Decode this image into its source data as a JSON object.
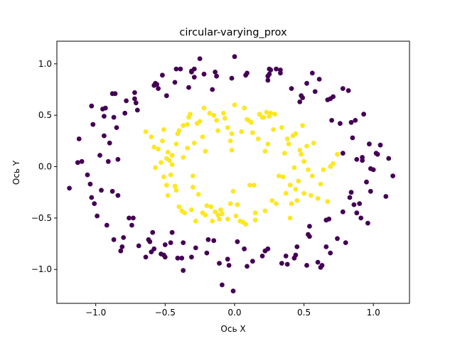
{
  "chart_data": {
    "type": "scatter",
    "title": "circular-varying_prox",
    "xlabel": "Ось X",
    "ylabel": "Ось Y",
    "xlim": [
      -1.28,
      1.26
    ],
    "ylim": [
      -1.33,
      1.22
    ],
    "xticks": [
      -1.0,
      -0.5,
      0.0,
      0.5,
      1.0
    ],
    "xtick_labels": [
      "−1.0",
      "−0.5",
      "0.0",
      "0.5",
      "1.0"
    ],
    "yticks": [
      -1.0,
      -0.5,
      0.0,
      0.5,
      1.0
    ],
    "ytick_labels": [
      "−1.0",
      "−0.5",
      "0.0",
      "0.5",
      "1.0"
    ],
    "grid": false,
    "colors": {
      "class_0": "#440154",
      "class_1": "#fde725"
    },
    "series": [
      {
        "color_key": "class_0",
        "points": [
          [
            -1.19,
            -0.21
          ],
          [
            -1.13,
            0.04
          ],
          [
            -1.12,
            0.27
          ],
          [
            -1.1,
            0.05
          ],
          [
            -1.06,
            -0.08
          ],
          [
            -1.04,
            -0.17
          ],
          [
            -1.03,
            0.59
          ],
          [
            -1.03,
            -0.3
          ],
          [
            -1.02,
            0.41
          ],
          [
            -1.01,
            -0.36
          ],
          [
            -0.99,
            -0.48
          ],
          [
            -0.97,
            0.11
          ],
          [
            -0.96,
            -0.23
          ],
          [
            -0.95,
            0.56
          ],
          [
            -0.94,
            0.3
          ],
          [
            -0.94,
            0.49
          ],
          [
            -0.93,
            0.57
          ],
          [
            -0.92,
            -0.57
          ],
          [
            -0.91,
            0.05
          ],
          [
            -0.9,
            0.23
          ],
          [
            -0.88,
            0.71
          ],
          [
            -0.88,
            -0.24
          ],
          [
            -0.87,
            -0.71
          ],
          [
            -0.87,
            0.48
          ],
          [
            -0.86,
            0.71
          ],
          [
            -0.85,
            0.38
          ],
          [
            -0.84,
            0.07
          ],
          [
            -0.84,
            -0.28
          ],
          [
            -0.82,
            -0.82
          ],
          [
            -0.81,
            -0.78
          ],
          [
            -0.8,
            -0.69
          ],
          [
            -0.79,
            0.52
          ],
          [
            -0.78,
            0.64
          ],
          [
            -0.76,
            -0.5
          ],
          [
            -0.74,
            -0.57
          ],
          [
            -0.73,
            -0.5
          ],
          [
            -0.72,
            0.66
          ],
          [
            -0.72,
            0.72
          ],
          [
            -0.71,
            0.62
          ],
          [
            -0.7,
            0.55
          ],
          [
            -0.69,
            -0.77
          ],
          [
            -0.64,
            -0.88
          ],
          [
            -0.62,
            -0.71
          ],
          [
            -0.61,
            -0.73
          ],
          [
            -0.6,
            -0.83
          ],
          [
            -0.59,
            -0.64
          ],
          [
            -0.58,
            0.79
          ],
          [
            -0.58,
            -0.8
          ],
          [
            -0.57,
            0.81
          ],
          [
            -0.56,
            0.8
          ],
          [
            -0.55,
            0.76
          ],
          [
            -0.53,
            -0.85
          ],
          [
            -0.52,
            0.89
          ],
          [
            -0.51,
            -0.86
          ],
          [
            -0.5,
            -0.76
          ],
          [
            -0.5,
            -0.88
          ],
          [
            -0.49,
            0.69
          ],
          [
            -0.46,
            -0.74
          ],
          [
            -0.45,
            -0.64
          ],
          [
            -0.43,
            0.82
          ],
          [
            -0.42,
            0.95
          ],
          [
            -0.41,
            -0.89
          ],
          [
            -0.39,
            0.95
          ],
          [
            -0.38,
            -0.89
          ],
          [
            -0.37,
            -0.74
          ],
          [
            -0.37,
            -1.01
          ],
          [
            -0.33,
            0.77
          ],
          [
            -0.31,
            0.92
          ],
          [
            -0.31,
            0.93
          ],
          [
            -0.31,
            -0.88
          ],
          [
            -0.29,
            0.95
          ],
          [
            -0.29,
            0.87
          ],
          [
            -0.28,
            -0.79
          ],
          [
            -0.25,
            1.05
          ],
          [
            -0.22,
            0.9
          ],
          [
            -0.2,
            -0.84
          ],
          [
            -0.19,
            -0.71
          ],
          [
            -0.16,
            0.75
          ],
          [
            -0.15,
            -0.72
          ],
          [
            -0.14,
            0.92
          ],
          [
            -0.13,
            0.88
          ],
          [
            -0.11,
            -0.94
          ],
          [
            -0.09,
            -1.15
          ],
          [
            -0.05,
            -0.9
          ],
          [
            -0.04,
            -0.96
          ],
          [
            -0.02,
            0.86
          ],
          [
            -0.01,
            -1.21
          ],
          [
            0.0,
            1.07
          ],
          [
            0.02,
            -0.73
          ],
          [
            0.07,
            -0.8
          ],
          [
            0.08,
            0.89
          ],
          [
            0.09,
            0.91
          ],
          [
            0.09,
            -0.97
          ],
          [
            0.13,
            -0.92
          ],
          [
            0.2,
            -0.87
          ],
          [
            0.22,
            -0.82
          ],
          [
            0.24,
            -0.8
          ],
          [
            0.24,
            0.84
          ],
          [
            0.24,
            0.88
          ],
          [
            0.25,
            0.95
          ],
          [
            0.25,
            0.9
          ],
          [
            0.26,
            0.94
          ],
          [
            0.3,
            0.95
          ],
          [
            0.33,
            0.94
          ],
          [
            0.33,
            0.91
          ],
          [
            0.34,
            -0.94
          ],
          [
            0.37,
            -0.87
          ],
          [
            0.38,
            -0.95
          ],
          [
            0.41,
            0.76
          ],
          [
            0.43,
            -0.89
          ],
          [
            0.44,
            -0.86
          ],
          [
            0.45,
            -0.78
          ],
          [
            0.47,
            0.63
          ],
          [
            0.48,
            0.69
          ],
          [
            0.49,
            0.67
          ],
          [
            0.52,
            0.81
          ],
          [
            0.52,
            -0.96
          ],
          [
            0.53,
            -0.66
          ],
          [
            0.54,
            -0.68
          ],
          [
            0.54,
            -0.58
          ],
          [
            0.56,
            0.91
          ],
          [
            0.58,
            0.73
          ],
          [
            0.6,
            -0.93
          ],
          [
            0.61,
            0.85
          ],
          [
            0.62,
            -0.98
          ],
          [
            0.63,
            -0.96
          ],
          [
            0.66,
            -0.78
          ],
          [
            0.66,
            -0.52
          ],
          [
            0.67,
            0.65
          ],
          [
            0.68,
            -0.51
          ],
          [
            0.69,
            -0.84
          ],
          [
            0.69,
            0.66
          ],
          [
            0.7,
            0.45
          ],
          [
            0.71,
            0.68
          ],
          [
            0.74,
            -0.7
          ],
          [
            0.76,
            0.42
          ],
          [
            0.78,
            -0.44
          ],
          [
            0.78,
            0.76
          ],
          [
            0.78,
            0.13
          ],
          [
            0.8,
            -0.74
          ],
          [
            0.82,
            0.74
          ],
          [
            0.83,
            -0.3
          ],
          [
            0.84,
            0.43
          ],
          [
            0.84,
            -0.25
          ],
          [
            0.85,
            0.28
          ],
          [
            0.86,
            -0.37
          ],
          [
            0.87,
            0.45
          ],
          [
            0.88,
            0.07
          ],
          [
            0.88,
            -0.45
          ],
          [
            0.9,
            -0.36
          ],
          [
            0.91,
            -0.5
          ],
          [
            0.92,
            0.09
          ],
          [
            0.92,
            0.06
          ],
          [
            0.93,
            0.51
          ],
          [
            0.95,
            -0.15
          ],
          [
            0.96,
            -0.55
          ],
          [
            0.97,
            0.22
          ],
          [
            0.98,
            -0.24
          ],
          [
            0.98,
            -0.02
          ],
          [
            1.0,
            -0.03
          ],
          [
            1.02,
            0.13
          ],
          [
            1.03,
            0.12
          ],
          [
            1.05,
            0.21
          ],
          [
            1.09,
            -0.29
          ],
          [
            1.11,
            0.08
          ],
          [
            1.14,
            -0.09
          ]
        ]
      },
      {
        "color_key": "class_1",
        "points": [
          [
            -0.64,
            0.34
          ],
          [
            -0.6,
            0.29
          ],
          [
            -0.58,
            0.19
          ],
          [
            -0.57,
            -0.01
          ],
          [
            -0.55,
            0.17
          ],
          [
            -0.53,
            0.04
          ],
          [
            -0.52,
            0.25
          ],
          [
            -0.51,
            0.36
          ],
          [
            -0.51,
            -0.1
          ],
          [
            -0.49,
            0.08
          ],
          [
            -0.49,
            -0.18
          ],
          [
            -0.48,
            0.14
          ],
          [
            -0.48,
            -0.28
          ],
          [
            -0.47,
            0.06
          ],
          [
            -0.46,
            -0.08
          ],
          [
            -0.45,
            0.02
          ],
          [
            -0.45,
            0.11
          ],
          [
            -0.43,
            -0.19
          ],
          [
            -0.42,
            -0.23
          ],
          [
            -0.42,
            0.22
          ],
          [
            -0.41,
            0.32
          ],
          [
            -0.4,
            0.35
          ],
          [
            -0.4,
            -0.39
          ],
          [
            -0.38,
            -0.43
          ],
          [
            -0.37,
            0.09
          ],
          [
            -0.37,
            0.4
          ],
          [
            -0.36,
            -0.45
          ],
          [
            -0.34,
            0.18
          ],
          [
            -0.34,
            0.41
          ],
          [
            -0.33,
            0.48
          ],
          [
            -0.32,
            0.51
          ],
          [
            -0.31,
            -0.42
          ],
          [
            -0.3,
            -0.2
          ],
          [
            -0.3,
            -0.09
          ],
          [
            -0.29,
            0.23
          ],
          [
            -0.28,
            -0.53
          ],
          [
            -0.27,
            0.42
          ],
          [
            -0.26,
            -0.27
          ],
          [
            -0.25,
            0.44
          ],
          [
            -0.23,
            -0.45
          ],
          [
            -0.23,
            0.29
          ],
          [
            -0.22,
            0.57
          ],
          [
            -0.21,
            0.15
          ],
          [
            -0.21,
            -0.47
          ],
          [
            -0.2,
            -0.38
          ],
          [
            -0.18,
            0.52
          ],
          [
            -0.17,
            -0.39
          ],
          [
            -0.16,
            -0.53
          ],
          [
            -0.15,
            0.5
          ],
          [
            -0.14,
            -0.44
          ],
          [
            -0.13,
            0.45
          ],
          [
            -0.12,
            -0.47
          ],
          [
            -0.12,
            0.35
          ],
          [
            -0.11,
            -0.51
          ],
          [
            -0.1,
            -0.42
          ],
          [
            -0.09,
            -0.46
          ],
          [
            -0.08,
            0.52
          ],
          [
            -0.07,
            0.47
          ],
          [
            -0.05,
            -0.51
          ],
          [
            -0.05,
            0.38
          ],
          [
            -0.03,
            0.25
          ],
          [
            -0.03,
            -0.36
          ],
          [
            -0.02,
            0.16
          ],
          [
            -0.02,
            0.32
          ],
          [
            -0.01,
            -0.24
          ],
          [
            0.0,
            0.6
          ],
          [
            0.01,
            -0.48
          ],
          [
            0.02,
            -0.37
          ],
          [
            0.04,
            -0.53
          ],
          [
            0.05,
            0.34
          ],
          [
            0.06,
            -0.54
          ],
          [
            0.07,
            0.57
          ],
          [
            0.08,
            -0.56
          ],
          [
            0.09,
            0.46
          ],
          [
            0.1,
            0.45
          ],
          [
            0.11,
            -0.18
          ],
          [
            0.12,
            0.43
          ],
          [
            0.13,
            0.33
          ],
          [
            0.14,
            -0.18
          ],
          [
            0.15,
            -0.45
          ],
          [
            0.15,
            -0.52
          ],
          [
            0.17,
            0.27
          ],
          [
            0.18,
            0.51
          ],
          [
            0.2,
            0.48
          ],
          [
            0.21,
            0.48
          ],
          [
            0.22,
            0.15
          ],
          [
            0.22,
            -0.43
          ],
          [
            0.23,
            0.53
          ],
          [
            0.24,
            0.22
          ],
          [
            0.25,
            0.49
          ],
          [
            0.26,
            0.52
          ],
          [
            0.27,
            -0.33
          ],
          [
            0.28,
            0.36
          ],
          [
            0.29,
            0.51
          ],
          [
            0.3,
            -0.36
          ],
          [
            0.32,
            -0.09
          ],
          [
            0.34,
            0.38
          ],
          [
            0.35,
            -0.1
          ],
          [
            0.36,
            0.13
          ],
          [
            0.37,
            -0.26
          ],
          [
            0.38,
            0.27
          ],
          [
            0.39,
            0.22
          ],
          [
            0.4,
            -0.18
          ],
          [
            0.4,
            -0.5
          ],
          [
            0.41,
            -0.36
          ],
          [
            0.42,
            0.3
          ],
          [
            0.43,
            -0.01
          ],
          [
            0.44,
            0.32
          ],
          [
            0.44,
            -0.22
          ],
          [
            0.45,
            -0.33
          ],
          [
            0.46,
            -0.14
          ],
          [
            0.47,
            0.16
          ],
          [
            0.48,
            0.12
          ],
          [
            0.49,
            0.4
          ],
          [
            0.5,
            0.05
          ],
          [
            0.5,
            -0.26
          ],
          [
            0.52,
            0.2
          ],
          [
            0.53,
            -0.03
          ],
          [
            0.55,
            -0.28
          ],
          [
            0.56,
            -0.09
          ],
          [
            0.57,
            0.23
          ],
          [
            0.6,
            -0.31
          ],
          [
            0.62,
            -0.17
          ],
          [
            0.64,
            -0.03
          ],
          [
            0.67,
            -0.34
          ],
          [
            0.69,
            0.0
          ],
          [
            0.71,
            0.03
          ],
          [
            0.74,
            0.12
          ]
        ]
      }
    ]
  }
}
